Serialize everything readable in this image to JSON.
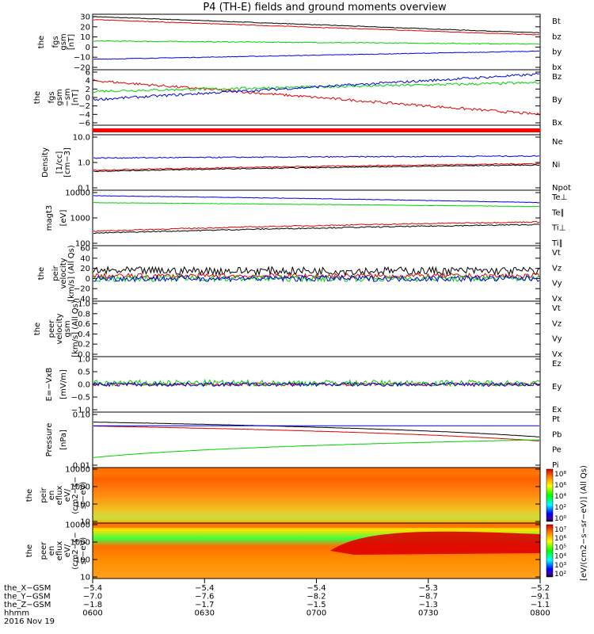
{
  "title": "P4 (TH-E) fields and ground moments overview",
  "colors": {
    "black": "#000000",
    "red": "#e00000",
    "green": "#00d000",
    "blue": "#0000e0"
  },
  "chart_data": [
    {
      "type": "line",
      "name": "fgs",
      "ylabel": [
        "the",
        "fgs",
        "gsm",
        "[nT]"
      ],
      "ylim": [
        -20,
        30
      ],
      "yticks": [
        "30",
        "20",
        "10",
        "0",
        "−10",
        "−20"
      ],
      "series": [
        {
          "name": "Bt",
          "color": "black",
          "start": 30,
          "end": 14,
          "noise": 0.3
        },
        {
          "name": "bz",
          "color": "red",
          "start": 27,
          "end": 12,
          "noise": 0.3
        },
        {
          "name": "by",
          "color": "green",
          "start": 6,
          "end": 3,
          "noise": 0.4
        },
        {
          "name": "bx",
          "color": "blue",
          "start": -12,
          "end": -4,
          "noise": 0.3
        }
      ]
    },
    {
      "type": "line",
      "name": "fgs-sm",
      "ylabel": [
        "the",
        "fgs",
        "gsm",
        "−sm",
        "[nT]"
      ],
      "ylim": [
        -6,
        6
      ],
      "yticks": [
        "6",
        "4",
        "2",
        "0",
        "−2",
        "−4",
        "−6"
      ],
      "series": [
        {
          "name": "Bz",
          "color": "red",
          "start": 4,
          "end": -4,
          "noise": 0.3
        },
        {
          "name": "By",
          "color": "green",
          "start": 1.5,
          "end": 3.5,
          "noise": 0.3
        },
        {
          "name": "Bx",
          "color": "blue",
          "start": -0.5,
          "end": 5.5,
          "noise": 0.3
        }
      ]
    },
    {
      "type": "line",
      "name": "density",
      "log": true,
      "ylabel": [
        "Density",
        "[1/cc]",
        "[cm−3]"
      ],
      "ylim": [
        0.1,
        10
      ],
      "yticks": [
        "10.0",
        "1.0",
        "0.1"
      ],
      "series": [
        {
          "name": "Ne",
          "color": "red",
          "start": 0.5,
          "end": 0.9,
          "noise": 0.05
        },
        {
          "name": "Ni",
          "color": "blue",
          "start": 1.5,
          "end": 1.8,
          "noise": 0.05
        },
        {
          "name": "Npot",
          "color": "black",
          "start": 0.45,
          "end": 0.8,
          "noise": 0.04
        }
      ]
    },
    {
      "type": "line",
      "name": "temperature",
      "log": true,
      "ylabel": [
        "magt3",
        "[eV]"
      ],
      "ylim": [
        100,
        10000
      ],
      "yticks": [
        "10000",
        "1000",
        "100"
      ],
      "series": [
        {
          "name": "Te⊥",
          "color": "red",
          "start": 300,
          "end": 700,
          "noise": 0.05
        },
        {
          "name": "Te∥",
          "color": "black",
          "start": 250,
          "end": 550,
          "noise": 0.05
        },
        {
          "name": "Ti⊥",
          "color": "blue",
          "start": 7500,
          "end": 4000,
          "noise": 0.02
        },
        {
          "name": "Ti∥",
          "color": "green",
          "start": 4000,
          "end": 2800,
          "noise": 0.02
        }
      ]
    },
    {
      "type": "line",
      "name": "peir-velocity",
      "ylabel": [
        "the",
        "peir",
        "velocity",
        "[km/s] (All Qs)"
      ],
      "ylim": [
        -40,
        60
      ],
      "yticks": [
        "60",
        "40",
        "20",
        "0",
        "−20",
        "−40"
      ],
      "series": [
        {
          "name": "Vt",
          "color": "black",
          "start": 15,
          "end": 15,
          "noise": 8
        },
        {
          "name": "Vz",
          "color": "red",
          "start": 5,
          "end": 5,
          "noise": 5
        },
        {
          "name": "Vy",
          "color": "green",
          "start": 0,
          "end": 0,
          "noise": 6
        },
        {
          "name": "Vx",
          "color": "blue",
          "start": 0,
          "end": 0,
          "noise": 6
        }
      ]
    },
    {
      "type": "line",
      "name": "peer-velocity",
      "ylabel": [
        "the",
        "peer",
        "velocity",
        "gsm",
        "[km/s] (All Qs)"
      ],
      "ylim": [
        0,
        1
      ],
      "yticks": [
        "1.0",
        "0.8",
        "0.6",
        "0.4",
        "0.2",
        "0.0"
      ],
      "series": [
        {
          "name": "Vt",
          "color": "black"
        },
        {
          "name": "Vz",
          "color": "red"
        },
        {
          "name": "Vy",
          "color": "green"
        },
        {
          "name": "Vx",
          "color": "blue"
        }
      ]
    },
    {
      "type": "line",
      "name": "efield",
      "ylabel": [
        "E=−VxB",
        "[mV/m]"
      ],
      "ylim": [
        -1,
        1
      ],
      "yticks": [
        "1.0",
        "0.5",
        "0.0",
        "−0.5",
        "−1.0"
      ],
      "series": [
        {
          "name": "Ez",
          "color": "red",
          "start": 0,
          "end": 0,
          "noise": 0.06
        },
        {
          "name": "Ey",
          "color": "green",
          "start": 0.05,
          "end": 0.05,
          "noise": 0.12
        },
        {
          "name": "Ex",
          "color": "blue",
          "start": 0,
          "end": 0,
          "noise": 0.08
        }
      ]
    },
    {
      "type": "line",
      "name": "pressure",
      "log": true,
      "ylabel": [
        "Pressure",
        "[nPa]"
      ],
      "ylim": [
        0.01,
        1
      ],
      "yticks": [
        "0.10",
        "0.01"
      ],
      "series": [
        {
          "name": "Pt",
          "color": "black",
          "start": 0.5,
          "end": 0.13,
          "noise": 0.01
        },
        {
          "name": "Pb",
          "color": "red",
          "start": 0.35,
          "end": 0.09,
          "noise": 0.01
        },
        {
          "name": "Pe",
          "color": "green",
          "start": 0.02,
          "end": 0.1,
          "noise": 0.01
        },
        {
          "name": "Pi",
          "color": "blue",
          "start": 0.36,
          "end": 0.36,
          "noise": 0.0
        }
      ]
    },
    {
      "type": "heatmap",
      "name": "peir-eflux",
      "ylabel": [
        "the",
        "peir",
        "en",
        "eflux",
        "eV/",
        "(cm2−s−",
        "sr−eV)"
      ],
      "ylim": [
        5,
        20000
      ],
      "yticks": [
        "10000",
        "1000",
        "100",
        "10"
      ]
    },
    {
      "type": "heatmap",
      "name": "peer-eflux",
      "ylabel": [
        "the",
        "peer",
        "en",
        "eflux",
        "eV/",
        "(cm2−s−",
        "sr−eV)"
      ],
      "ylim": [
        5,
        20000
      ],
      "yticks": [
        "10000",
        "1000",
        "100",
        "10"
      ]
    }
  ],
  "colorbar": {
    "label": "[eV/(cm2−s−sr−eV)] (All Qs)",
    "top_ticks": [
      "10⁸",
      "10⁶",
      "10⁴",
      "10²",
      "10⁰"
    ],
    "bottom_ticks": [
      "10⁷",
      "10⁶",
      "10⁵",
      "10⁴",
      "10³",
      "10²"
    ]
  },
  "xaxis": {
    "row_labels": [
      "the_X−GSM",
      "the_Y−GSM",
      "the_Z−GSM",
      "hhmm",
      "2016 Nov 19"
    ],
    "columns": [
      {
        "x": "−5.4",
        "y": "−7.0",
        "z": "−1.8",
        "t": "0600"
      },
      {
        "x": "−5.4",
        "y": "−7.6",
        "z": "−1.7",
        "t": "0630"
      },
      {
        "x": "−5.4",
        "y": "−8.2",
        "z": "−1.5",
        "t": "0700"
      },
      {
        "x": "−5.3",
        "y": "−8.7",
        "z": "−1.3",
        "t": "0730"
      },
      {
        "x": "−5.2",
        "y": "−9.1",
        "z": "−1.1",
        "t": "0800"
      }
    ]
  }
}
